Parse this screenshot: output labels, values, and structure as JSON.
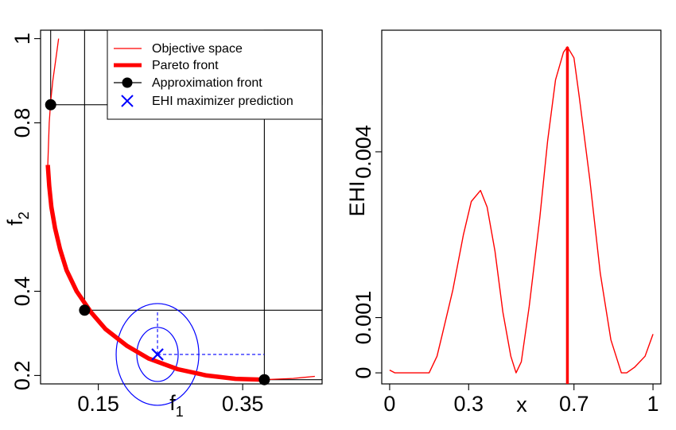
{
  "chart_data": [
    {
      "type": "line",
      "panel": "left",
      "xlabel": "f",
      "xlabel_sub": "1",
      "ylabel": "f",
      "ylabel_sub": "2",
      "xlim": [
        0.07,
        0.46
      ],
      "ylim": [
        0.18,
        1.02
      ],
      "xticks": [
        {
          "v": 0.15,
          "label": "0.15"
        },
        {
          "v": 0.35,
          "label": "0.35"
        }
      ],
      "yticks": [
        {
          "v": 0.2,
          "label": "0.2"
        },
        {
          "v": 0.4,
          "label": "0.4"
        },
        {
          "v": 0.8,
          "label": "0.8"
        },
        {
          "v": 1.0,
          "label": "1"
        }
      ],
      "legend": {
        "position": "top-right",
        "entries": [
          {
            "label": "Objective space",
            "style": "thin-line",
            "color": "#ff0000"
          },
          {
            "label": "Pareto front",
            "style": "thick-line",
            "color": "#ff0000"
          },
          {
            "label": "Approximation front",
            "style": "line-point",
            "color": "#000000"
          },
          {
            "label": "EHI maximizer prediction",
            "style": "cross",
            "color": "#0000ff"
          }
        ]
      },
      "series": [
        {
          "name": "Objective space",
          "color": "#ff0000",
          "points": [
            [
              0.095,
              1.0
            ],
            [
              0.091,
              0.95
            ],
            [
              0.087,
              0.9
            ],
            [
              0.084,
              0.85
            ],
            [
              0.082,
              0.8
            ],
            [
              0.081,
              0.75
            ],
            [
              0.08,
              0.7
            ],
            [
              0.082,
              0.65
            ],
            [
              0.085,
              0.6
            ],
            [
              0.09,
              0.55
            ],
            [
              0.097,
              0.5
            ],
            [
              0.106,
              0.45
            ],
            [
              0.12,
              0.4
            ],
            [
              0.14,
              0.35
            ],
            [
              0.16,
              0.31
            ],
            [
              0.19,
              0.27
            ],
            [
              0.22,
              0.24
            ],
            [
              0.26,
              0.215
            ],
            [
              0.3,
              0.2
            ],
            [
              0.34,
              0.192
            ],
            [
              0.38,
              0.19
            ],
            [
              0.42,
              0.193
            ],
            [
              0.45,
              0.198
            ]
          ]
        },
        {
          "name": "Pareto front",
          "color": "#ff0000",
          "points": [
            [
              0.08,
              0.7
            ],
            [
              0.082,
              0.65
            ],
            [
              0.085,
              0.6
            ],
            [
              0.09,
              0.55
            ],
            [
              0.097,
              0.5
            ],
            [
              0.106,
              0.45
            ],
            [
              0.12,
              0.4
            ],
            [
              0.14,
              0.35
            ],
            [
              0.16,
              0.31
            ],
            [
              0.19,
              0.27
            ],
            [
              0.22,
              0.24
            ],
            [
              0.26,
              0.215
            ],
            [
              0.3,
              0.2
            ],
            [
              0.34,
              0.192
            ],
            [
              0.38,
              0.19
            ]
          ]
        },
        {
          "name": "Approximation front",
          "color": "#000000",
          "points": [
            [
              0.084,
              0.843
            ],
            [
              0.131,
              0.355
            ],
            [
              0.38,
              0.19
            ]
          ]
        },
        {
          "name": "EHI maximizer prediction",
          "color": "#0000ff",
          "points": [
            [
              0.232,
              0.25
            ]
          ]
        }
      ]
    },
    {
      "type": "line",
      "panel": "right",
      "xlabel": "x",
      "ylabel": "EHI",
      "xlim": [
        -0.03,
        1.03
      ],
      "ylim": [
        -0.0002,
        0.0062
      ],
      "xticks": [
        {
          "v": 0,
          "label": "0"
        },
        {
          "v": 0.3,
          "label": "0.3"
        },
        {
          "v": 0.7,
          "label": "0.7"
        },
        {
          "v": 1,
          "label": "1"
        }
      ],
      "yticks": [
        {
          "v": 0,
          "label": "0"
        },
        {
          "v": 0.001,
          "label": "0.001"
        },
        {
          "v": 0.004,
          "label": "0.004"
        }
      ],
      "series": [
        {
          "name": "EHI",
          "color": "#ff0000",
          "points": [
            [
              0,
              5e-05
            ],
            [
              0.02,
              0
            ],
            [
              0.05,
              0
            ],
            [
              0.1,
              0
            ],
            [
              0.15,
              0
            ],
            [
              0.18,
              0.0003
            ],
            [
              0.2,
              0.0007
            ],
            [
              0.24,
              0.0015
            ],
            [
              0.28,
              0.0025
            ],
            [
              0.31,
              0.0031
            ],
            [
              0.345,
              0.0033
            ],
            [
              0.37,
              0.003
            ],
            [
              0.4,
              0.0022
            ],
            [
              0.43,
              0.0011
            ],
            [
              0.46,
              0.0003
            ],
            [
              0.48,
              0
            ],
            [
              0.5,
              0.0002
            ],
            [
              0.53,
              0.0012
            ],
            [
              0.57,
              0.0028
            ],
            [
              0.6,
              0.0042
            ],
            [
              0.63,
              0.0053
            ],
            [
              0.66,
              0.0058
            ],
            [
              0.675,
              0.0059
            ],
            [
              0.7,
              0.0057
            ],
            [
              0.72,
              0.005
            ],
            [
              0.76,
              0.0035
            ],
            [
              0.8,
              0.0018
            ],
            [
              0.84,
              0.0006
            ],
            [
              0.88,
              0
            ],
            [
              0.9,
              0
            ],
            [
              0.93,
              0.0001
            ],
            [
              0.97,
              0.0003
            ],
            [
              1.0,
              0.0007
            ]
          ]
        }
      ],
      "vertical_line": {
        "x": 0.675,
        "color": "#ff0000"
      }
    }
  ]
}
